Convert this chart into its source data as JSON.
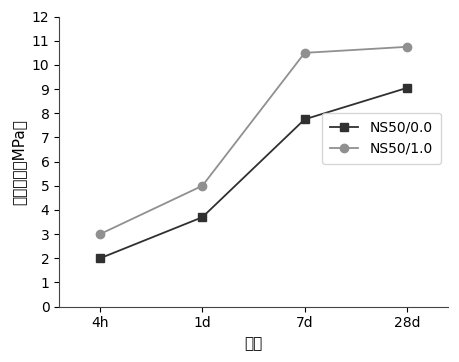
{
  "x_labels": [
    "4h",
    "1d",
    "7d",
    "28d"
  ],
  "x_positions": [
    0,
    1,
    2,
    3
  ],
  "series": [
    {
      "label": "NS50/0.0",
      "values": [
        2.0,
        3.7,
        7.75,
        9.05
      ],
      "color": "#303030",
      "marker": "s",
      "linestyle": "-",
      "markersize": 6,
      "linewidth": 1.3
    },
    {
      "label": "NS50/1.0",
      "values": [
        3.0,
        5.0,
        10.5,
        10.75
      ],
      "color": "#909090",
      "marker": "o",
      "linestyle": "-",
      "markersize": 6,
      "linewidth": 1.3
    }
  ],
  "ylabel": "抗折強度（MPa）",
  "xlabel": "齢期",
  "ylim": [
    0,
    12
  ],
  "yticks": [
    0,
    1,
    2,
    3,
    4,
    5,
    6,
    7,
    8,
    9,
    10,
    11,
    12
  ],
  "xlim": [
    -0.4,
    3.4
  ],
  "background_color": "#ffffff",
  "tick_fontsize": 10,
  "label_fontsize": 11
}
